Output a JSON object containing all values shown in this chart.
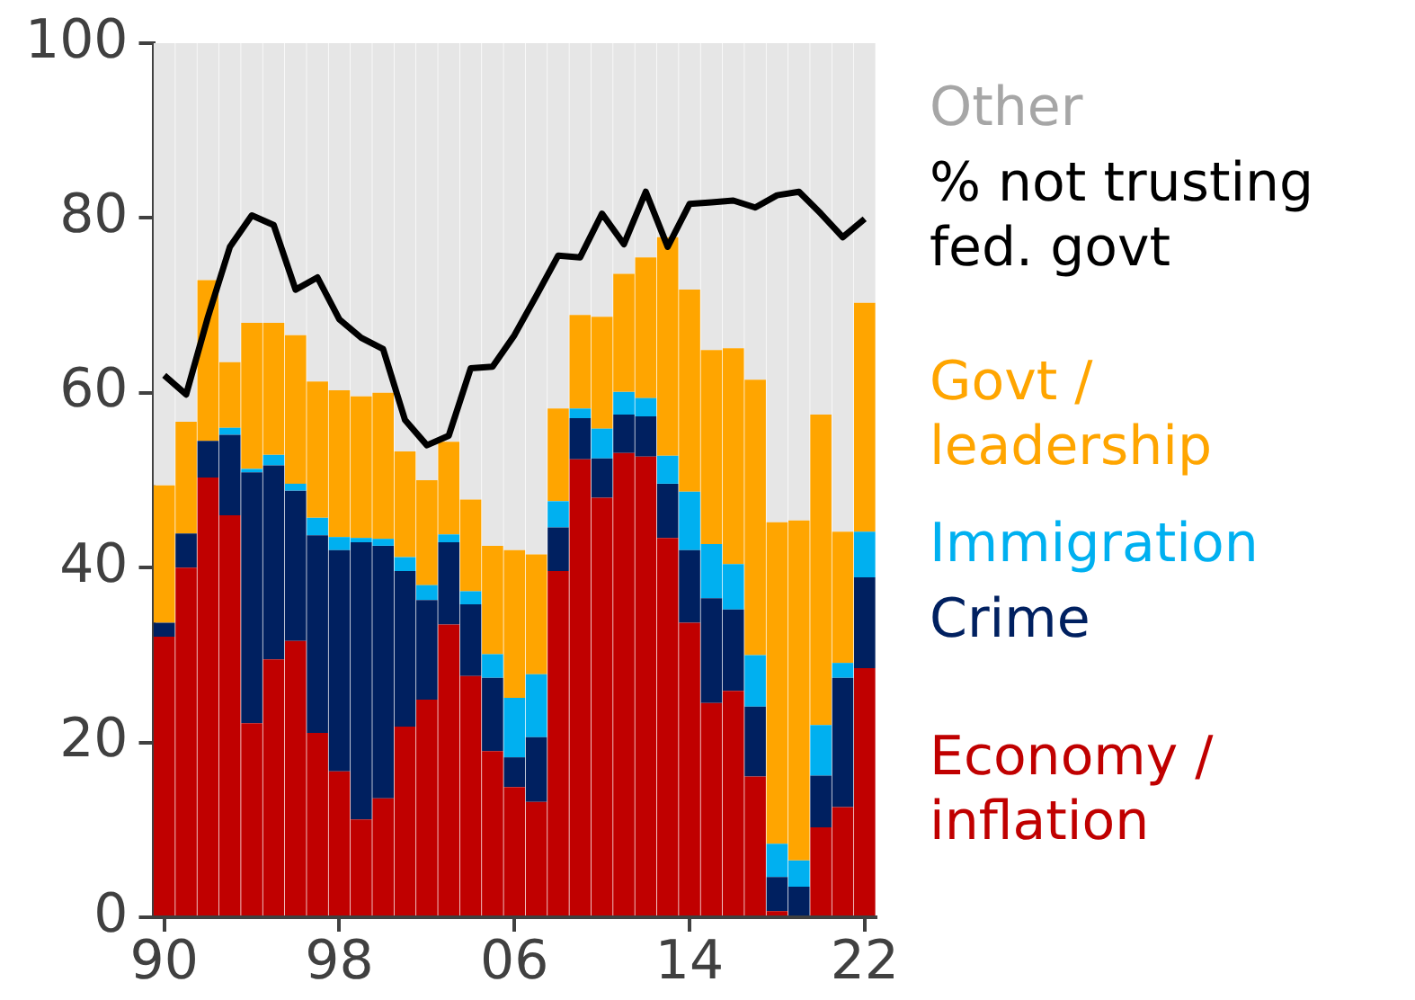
{
  "chart_data": {
    "type": "bar",
    "stacked": true,
    "categories": [
      "90",
      null,
      null,
      null,
      null,
      null,
      null,
      null,
      "98",
      null,
      null,
      null,
      null,
      null,
      null,
      null,
      "06",
      null,
      null,
      null,
      null,
      null,
      null,
      null,
      "14",
      null,
      null,
      null,
      null,
      null,
      null,
      null,
      "22"
    ],
    "ylim": [
      0,
      100
    ],
    "yticks": [
      0,
      20,
      40,
      60,
      80,
      100
    ],
    "grid": false,
    "legend": false,
    "series": [
      {
        "name": "Economy / inflation",
        "color": "#c00000",
        "values": [
          32.1,
          40,
          50.3,
          46,
          22.2,
          29.5,
          31.6,
          21.1,
          16.7,
          11.2,
          13.6,
          21.8,
          24.9,
          33.5,
          27.6,
          19,
          14.9,
          13.2,
          39.6,
          52.4,
          48,
          53.1,
          52.7,
          43.4,
          33.7,
          24.5,
          25.9,
          16.1,
          0.7,
          0,
          10.3,
          12.6,
          28.5
        ]
      },
      {
        "name": "Crime",
        "color": "#002060",
        "values": [
          1.6,
          3.9,
          4.2,
          9.2,
          28.7,
          22.2,
          17.2,
          22.6,
          25.3,
          31.7,
          28.9,
          17.8,
          11.4,
          9.4,
          8.2,
          8.4,
          3.4,
          7.4,
          5,
          4.7,
          4.5,
          4.4,
          4.6,
          6.2,
          8.3,
          12,
          9.3,
          8,
          3.9,
          3.5,
          5.9,
          14.8,
          10.4
        ]
      },
      {
        "name": "Immigration",
        "color": "#00b0f0",
        "values": [
          0,
          0,
          0,
          0.8,
          0.4,
          1.2,
          0.8,
          2,
          1.5,
          0.5,
          0.8,
          1.6,
          1.7,
          0.9,
          1.5,
          2.7,
          6.8,
          7.2,
          3,
          1.1,
          3.4,
          2.6,
          2.1,
          3.2,
          6.7,
          6.2,
          5.2,
          5.9,
          3.8,
          3,
          5.8,
          1.7,
          5.2
        ]
      },
      {
        "name": "Govt / leadership",
        "color": "#ffa500",
        "values": [
          15.7,
          12.8,
          18.4,
          7.5,
          16.7,
          15.1,
          17,
          15.6,
          16.8,
          16.2,
          16.7,
          12.1,
          12,
          10.6,
          10.5,
          12.4,
          16.9,
          13.7,
          10.6,
          10.7,
          12.8,
          13.5,
          16.1,
          25,
          23.1,
          22.2,
          24.7,
          31.5,
          36.8,
          38.9,
          35.5,
          15,
          26.2
        ]
      },
      {
        "name": "Other",
        "color": "#e6e6e6",
        "values": [
          50.6,
          43.3,
          27.1,
          36.5,
          32,
          32,
          33.4,
          38.7,
          39.7,
          40.4,
          40,
          46.7,
          50,
          45.6,
          52.2,
          57.5,
          58,
          58.5,
          41.8,
          31.1,
          31.3,
          26.4,
          24.5,
          22.2,
          28.2,
          35.1,
          34.9,
          38.5,
          54.8,
          54.6,
          42.5,
          55.9,
          29.7
        ]
      },
      {
        "name": "% not trusting fed. govt",
        "type": "line",
        "color": "#000000",
        "values": [
          62,
          59.8,
          68.7,
          76.7,
          80.3,
          79.2,
          71.8,
          73.2,
          68.4,
          66.3,
          65,
          56.9,
          54,
          55.1,
          62.8,
          63,
          66.6,
          71.1,
          75.7,
          75.5,
          80.5,
          77,
          83,
          76.7,
          81.6,
          81.8,
          82,
          81.2,
          82.6,
          83,
          80.5,
          77.8,
          79.9
        ]
      }
    ]
  }
}
